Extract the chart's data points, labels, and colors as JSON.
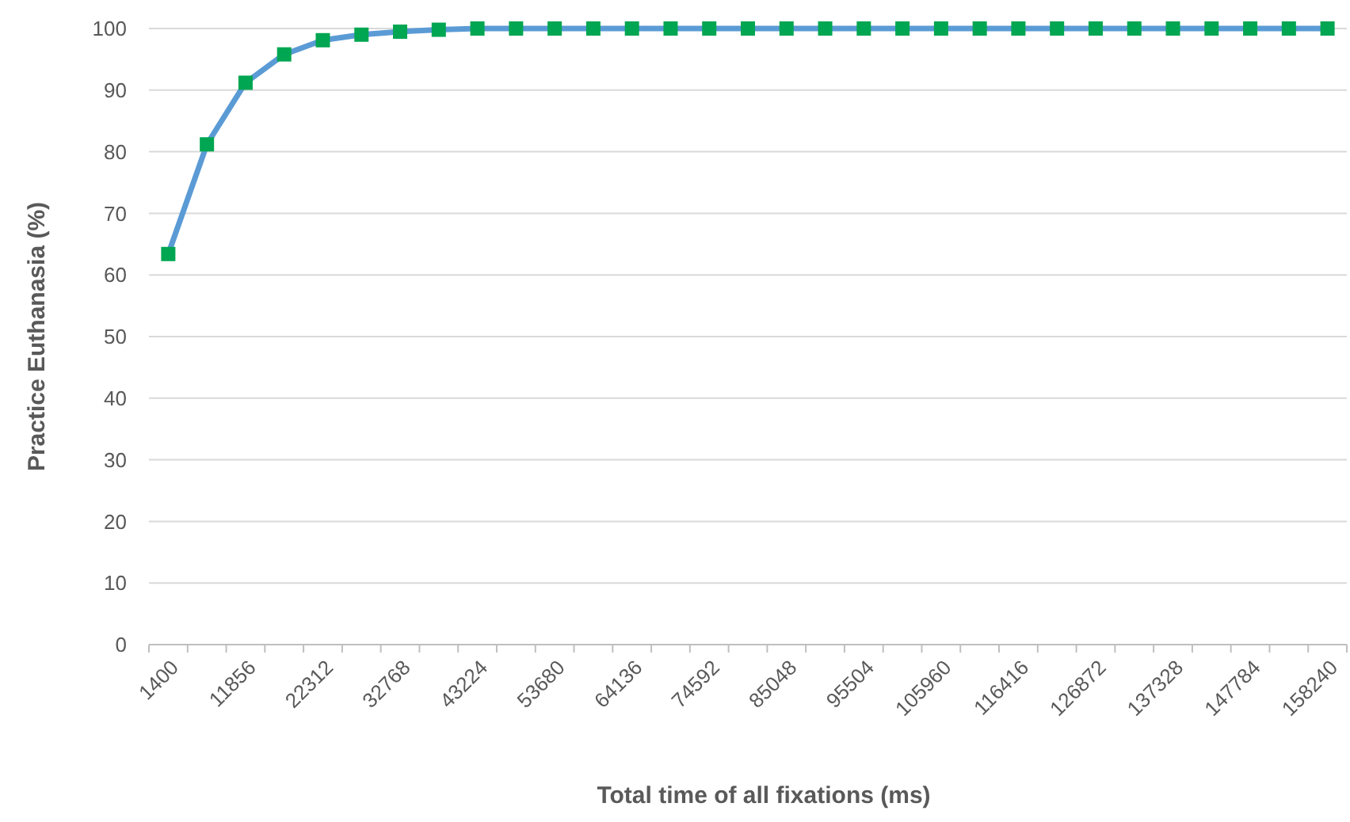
{
  "chart_data": {
    "type": "line",
    "xlabel": "Total time of all fixations (ms)",
    "ylabel": "Practice Euthanasia (%)",
    "categories": [
      "1400",
      null,
      "11856",
      null,
      "22312",
      null,
      "32768",
      null,
      "43224",
      null,
      "53680",
      null,
      "64136",
      null,
      "74592",
      null,
      "85048",
      null,
      "95504",
      null,
      "105960",
      null,
      "116416",
      null,
      "126872",
      null,
      "137328",
      null,
      "147784",
      null,
      "158240"
    ],
    "series": [
      {
        "color": "#5b9bd5",
        "colors": [
          "#00a651",
          "#00a651",
          "#00a651",
          "#00a651",
          "#00a651",
          "#00a651",
          "#00a651",
          "#00a651",
          "#00a651",
          "#00a651",
          "#00a651",
          "#00a651",
          "#00a651",
          "#00a651",
          "#00a651",
          "#00a651",
          "#00a651",
          "#00a651",
          "#00a651",
          "#00a651",
          "#00a651",
          "#00a651",
          "#00a651",
          "#00a651",
          "#00a651",
          "#00a651",
          "#00a651",
          "#00a651",
          "#00a651",
          "#00a651",
          "#00a651"
        ],
        "values": [
          63.4,
          81.2,
          91.2,
          95.8,
          98.1,
          99.0,
          99.5,
          99.8,
          100,
          100,
          100,
          100,
          100,
          100,
          100,
          100,
          100,
          100,
          100,
          100,
          100,
          100,
          100,
          100,
          100,
          100,
          100,
          100,
          100,
          100,
          100
        ]
      }
    ],
    "ylim": [
      0,
      100
    ],
    "yticks": [
      0,
      10,
      20,
      30,
      40,
      50,
      60,
      70,
      80,
      90,
      100
    ],
    "grid": "y",
    "marker": "square",
    "line_style": "solid"
  }
}
